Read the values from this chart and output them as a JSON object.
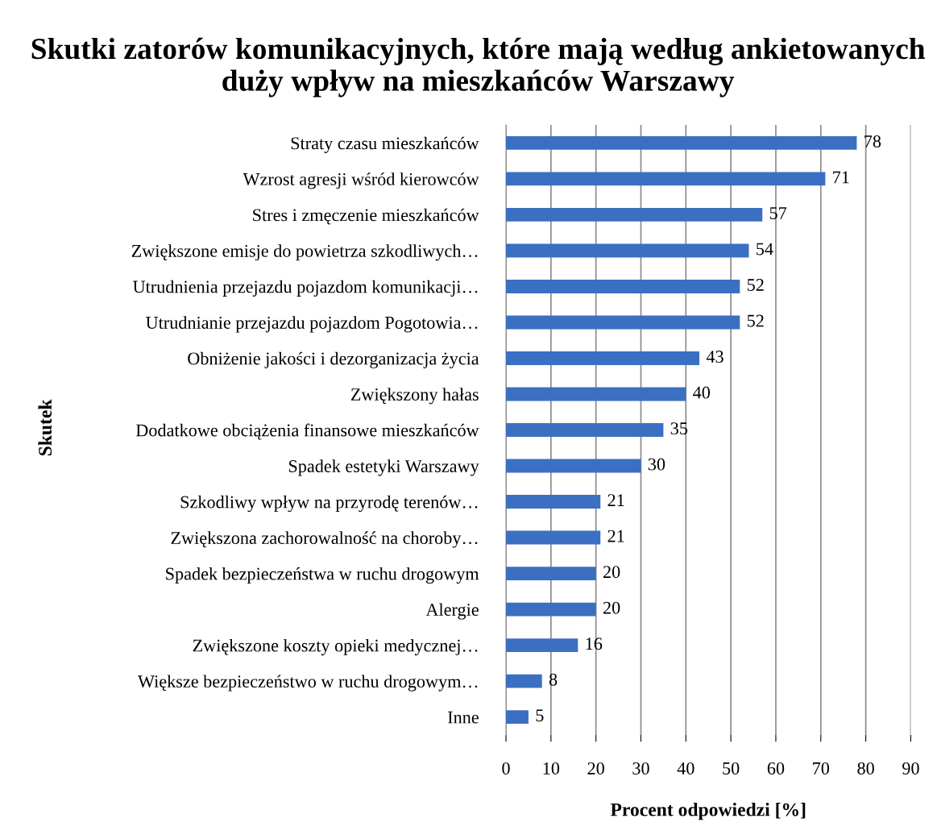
{
  "chart_data": {
    "type": "bar",
    "orientation": "horizontal",
    "title": "Skutki zatorów komunikacyjnych, które mają według ankietowanych duży wpływ na mieszkańców Warszawy",
    "xlabel": "Procent odpowiedzi [%]",
    "ylabel": "Skutek",
    "categories": [
      "Straty czasu mieszkańców",
      "Wzrost agresji wśród kierowców",
      "Stres i zmęczenie mieszkańców",
      "Zwiększone emisje do powietrza szkodliwych…",
      "Utrudnienia przejazdu pojazdom komunikacji…",
      "Utrudnianie przejazdu pojazdom Pogotowia…",
      "Obniżenie jakości i dezorganizacja życia",
      "Zwiększony hałas",
      "Dodatkowe obciążenia finansowe mieszkańców",
      "Spadek estetyki Warszawy",
      "Szkodliwy wpływ na przyrodę terenów…",
      "Zwiększona zachorowalność na choroby…",
      "Spadek bezpieczeństwa w ruchu drogowym",
      "Alergie",
      "Zwiększone koszty opieki medycznej…",
      "Większe bezpieczeństwo w ruchu drogowym…",
      "Inne"
    ],
    "values": [
      78,
      71,
      57,
      54,
      52,
      52,
      43,
      40,
      35,
      30,
      21,
      21,
      20,
      20,
      16,
      8,
      5
    ],
    "color": "#3b6fc2",
    "xlim": [
      0,
      90
    ],
    "xticks": [
      0,
      10,
      20,
      30,
      40,
      50,
      60,
      70,
      80,
      90
    ],
    "grid": "x",
    "data_labels": true
  }
}
